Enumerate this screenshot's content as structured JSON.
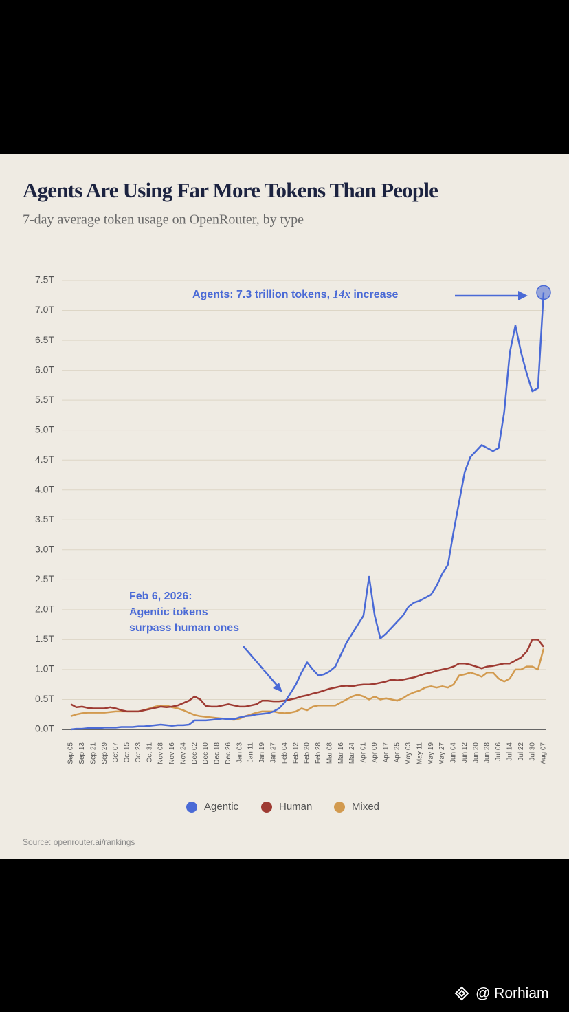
{
  "chart_data": {
    "type": "line",
    "title": "Agents Are Using Far More Tokens Than People",
    "subtitle": "7-day average token usage on OpenRouter, by type",
    "source": "Source: openrouter.ai/rankings",
    "watermark": "@ Rorhiam",
    "peak_annotation": {
      "parts": [
        "Agents: 7.3 trillion tokens, ",
        "14x",
        " increase"
      ]
    },
    "crossover_annotation": {
      "lines": [
        "Feb 6, 2026:",
        "Agentic tokens",
        "surpass human ones"
      ]
    },
    "categories": [
      "Sep 05",
      null,
      "Sep 13",
      null,
      "Sep 21",
      null,
      "Sep 29",
      null,
      "Oct 07",
      null,
      "Oct 15",
      null,
      "Oct 23",
      null,
      "Oct 31",
      null,
      "Nov 08",
      null,
      "Nov 16",
      null,
      "Nov 24",
      null,
      "Dec 02",
      null,
      "Dec 10",
      null,
      "Dec 18",
      null,
      "Dec 26",
      null,
      "Jan 03",
      null,
      "Jan 11",
      null,
      "Jan 19",
      null,
      "Jan 27",
      null,
      "Feb 04",
      null,
      "Feb 12",
      null,
      "Feb 20",
      null,
      "Feb 28",
      null,
      "Mar 08",
      null,
      "Mar 16",
      null,
      "Mar 24",
      null,
      "Apr 01",
      null,
      "Apr 09",
      null,
      "Apr 17",
      null,
      "Apr 25",
      null,
      "May 03",
      null,
      "May 11",
      null,
      "May 19",
      null,
      "May 27",
      null,
      "Jun 04",
      null,
      "Jun 12",
      null,
      "Jun 20",
      null,
      "Jun 28",
      null,
      "Jul 06",
      null,
      "Jul 14",
      null,
      "Jul 22",
      null,
      "Jul 30",
      null,
      "Aug 07"
    ],
    "series": [
      {
        "name": "Agentic",
        "color": "#4a6ad6",
        "values": [
          0,
          0.01,
          0.01,
          0.02,
          0.02,
          0.02,
          0.03,
          0.03,
          0.03,
          0.04,
          0.04,
          0.04,
          0.05,
          0.05,
          0.06,
          0.07,
          0.08,
          0.07,
          0.06,
          0.07,
          0.07,
          0.08,
          0.15,
          0.15,
          0.15,
          0.16,
          0.17,
          0.18,
          0.17,
          0.17,
          0.2,
          0.22,
          0.23,
          0.25,
          0.26,
          0.27,
          0.3,
          0.35,
          0.45,
          0.6,
          0.75,
          0.95,
          1.12,
          1.0,
          0.9,
          0.92,
          0.97,
          1.05,
          1.25,
          1.45,
          1.6,
          1.75,
          1.9,
          2.55,
          1.9,
          1.52,
          1.6,
          1.7,
          1.8,
          1.9,
          2.05,
          2.12,
          2.15,
          2.2,
          2.25,
          2.4,
          2.6,
          2.75,
          3.3,
          3.8,
          4.3,
          4.55,
          4.65,
          4.75,
          4.7,
          4.65,
          4.7,
          5.3,
          6.3,
          6.75,
          6.3,
          5.95,
          5.65,
          5.7,
          7.3
        ]
      },
      {
        "name": "Human",
        "color": "#9e3b33",
        "values": [
          0.42,
          0.37,
          0.38,
          0.36,
          0.35,
          0.35,
          0.35,
          0.37,
          0.35,
          0.32,
          0.3,
          0.3,
          0.3,
          0.32,
          0.34,
          0.36,
          0.38,
          0.37,
          0.38,
          0.4,
          0.44,
          0.48,
          0.55,
          0.5,
          0.39,
          0.38,
          0.38,
          0.4,
          0.42,
          0.4,
          0.38,
          0.38,
          0.4,
          0.42,
          0.48,
          0.48,
          0.47,
          0.47,
          0.48,
          0.5,
          0.52,
          0.55,
          0.57,
          0.6,
          0.62,
          0.65,
          0.68,
          0.7,
          0.72,
          0.73,
          0.72,
          0.74,
          0.75,
          0.75,
          0.76,
          0.78,
          0.8,
          0.83,
          0.82,
          0.83,
          0.85,
          0.87,
          0.9,
          0.93,
          0.95,
          0.98,
          1.0,
          1.02,
          1.05,
          1.1,
          1.1,
          1.08,
          1.05,
          1.02,
          1.05,
          1.06,
          1.08,
          1.1,
          1.1,
          1.15,
          1.2,
          1.3,
          1.5,
          1.5,
          1.38
        ]
      },
      {
        "name": "Mixed",
        "color": "#d29a4f",
        "values": [
          0.22,
          0.25,
          0.27,
          0.28,
          0.28,
          0.28,
          0.28,
          0.29,
          0.3,
          0.3,
          0.3,
          0.3,
          0.3,
          0.32,
          0.35,
          0.38,
          0.4,
          0.4,
          0.37,
          0.35,
          0.32,
          0.28,
          0.24,
          0.22,
          0.21,
          0.2,
          0.19,
          0.18,
          0.17,
          0.16,
          0.18,
          0.22,
          0.25,
          0.28,
          0.3,
          0.3,
          0.3,
          0.28,
          0.27,
          0.28,
          0.3,
          0.35,
          0.32,
          0.38,
          0.4,
          0.4,
          0.4,
          0.4,
          0.45,
          0.5,
          0.55,
          0.58,
          0.55,
          0.5,
          0.55,
          0.5,
          0.52,
          0.5,
          0.48,
          0.52,
          0.58,
          0.62,
          0.65,
          0.7,
          0.72,
          0.7,
          0.72,
          0.7,
          0.75,
          0.9,
          0.92,
          0.95,
          0.92,
          0.88,
          0.95,
          0.95,
          0.85,
          0.8,
          0.85,
          1.0,
          1.0,
          1.05,
          1.05,
          1.0,
          1.35
        ]
      }
    ],
    "ylim": [
      0,
      7.5
    ],
    "yticks": [
      {
        "value": 0,
        "label": "0.0T"
      },
      {
        "value": 0.5,
        "label": "0.5T"
      },
      {
        "value": 1,
        "label": "1.0T"
      },
      {
        "value": 1.5,
        "label": "1.5T"
      },
      {
        "value": 2,
        "label": "2.0T"
      },
      {
        "value": 2.5,
        "label": "2.5T"
      },
      {
        "value": 3,
        "label": "3.0T"
      },
      {
        "value": 3.5,
        "label": "3.5T"
      },
      {
        "value": 4,
        "label": "4.0T"
      },
      {
        "value": 4.5,
        "label": "4.5T"
      },
      {
        "value": 5,
        "label": "5.0T"
      },
      {
        "value": 5.5,
        "label": "5.5T"
      },
      {
        "value": 6,
        "label": "6.0T"
      },
      {
        "value": 6.5,
        "label": "6.5T"
      },
      {
        "value": 7,
        "label": "7.0T"
      },
      {
        "value": 7.5,
        "label": "7.5T"
      }
    ],
    "grid": true
  }
}
